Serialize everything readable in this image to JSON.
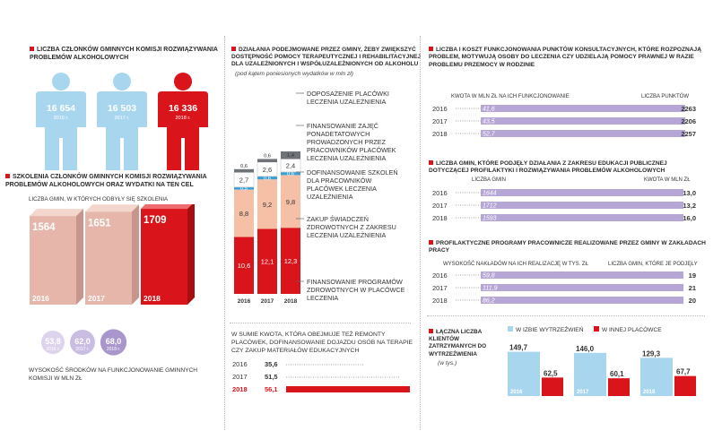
{
  "colors": {
    "red": "#d9141b",
    "lightblue": "#a9d6ef",
    "lilac": "#b6a6d6",
    "peach": "#f6c0a6",
    "gray": "#6f7378",
    "pink": "#f0a9b9"
  },
  "members": {
    "title": "Liczba członków gminnych komisji rozwiązywania problemów alkoholowych",
    "figures": [
      {
        "value": "16 654",
        "year": "2016 r."
      },
      {
        "value": "16 503",
        "year": "2017 r."
      },
      {
        "value": "16 336",
        "year": "2018 r."
      }
    ]
  },
  "training": {
    "title": "Szkolenia członków gminnych komisji rozwiązywania problemów alkoholowych oraz wydatki na ten cel",
    "subtitle": "Liczba gmin, w których odbyły się szkolenia",
    "boxes": [
      {
        "value": "1564",
        "year": "2016"
      },
      {
        "value": "1651",
        "year": "2017"
      },
      {
        "value": "1709",
        "year": "2018"
      }
    ],
    "funds": [
      "53,8",
      "62,0",
      "68,0"
    ],
    "fund_years": [
      "2016 r.",
      "2017 r.",
      "2018 r."
    ],
    "funds_label": "Wysokość środków na funkcjonowanie gminnych komisji w mln zł"
  },
  "actions": {
    "title": "Działania podejmowane przez gminy, żeby zwiększyć dostępność pomocy terapeutycznej i rehabilitacyjnej dla uzależnionych i współuzależnionych od alkoholu",
    "subtitle": "(pod kątem poniesionych wydatków w mln zł)",
    "legend": [
      "Doposażenie placówki leczenia uzależnienia",
      "Finansowanie zajęć ponadetatowych prowadzonych przez pracowników placówek leczenia uzależnienia",
      "Dofinansowanie szkoleń dla pracowników placówek leczenia uzależnienia",
      "Zakup świadczeń zdrowotnych z zakresu leczenia uzależnienia",
      "Finansowanie programów zdrowotnych w placówce leczenia"
    ]
  },
  "sum": {
    "title": "W sumie kwota, która obejmuje też remonty placówek, dofinansowanie dojazdu osób na terapie czy zakup materiałów edukacyjnych",
    "rows": [
      {
        "year": "2016",
        "value": "35,6"
      },
      {
        "year": "2017",
        "value": "51,5"
      },
      {
        "year": "2018",
        "value": "56,1"
      }
    ]
  },
  "consult": {
    "title": "Liczba i koszt funkcjonowania punktów konsultacyjnych, które rozpoznają problem, motywują osoby do leczenia czy udzielają pomocy prawnej w razie problemu przemocy w rodzinie",
    "col_left": "Kwota w mln zł na ich funkcjonowanie",
    "col_right": "Liczba punktów",
    "rows": [
      {
        "year": "2016",
        "left": "41,6",
        "right": "2263"
      },
      {
        "year": "2017",
        "left": "43,5",
        "right": "2206"
      },
      {
        "year": "2018",
        "left": "52,7",
        "right": "2257"
      }
    ]
  },
  "education": {
    "title": "Liczba gmin, które podjęły działania z zakresu edukacji publicznej dotyczącej profilaktyki i rozwiązywania problemów alkoholowych",
    "col_left": "Liczba gmin",
    "col_right": "Kwota w mln zł",
    "rows": [
      {
        "year": "2016",
        "left": "1644",
        "right": "13,0"
      },
      {
        "year": "2017",
        "left": "1712",
        "right": "13,2"
      },
      {
        "year": "2018",
        "left": "1593",
        "right": "16,0"
      }
    ]
  },
  "workplace": {
    "title": "Profilaktyczne programy pracownicze realizowane przez gminy w zakładach pracy",
    "col_left": "Wysokość nakładów na ich realizację w tys. zł",
    "col_right": "Liczba gmin, które je podjęły",
    "rows": [
      {
        "year": "2016",
        "left": "59,8",
        "right": "19"
      },
      {
        "year": "2017",
        "left": "111,9",
        "right": "21"
      },
      {
        "year": "2018",
        "left": "86,2",
        "right": "20"
      }
    ]
  },
  "detained": {
    "title": "Łączna liczba klientów zatrzymanych do wytrzeźwienia",
    "unit": "(w tys.)",
    "legend_a": "w izbie wytrzeźwień",
    "legend_b": "w innej placówce",
    "years": [
      "2016",
      "2017",
      "2018"
    ],
    "a_labels": [
      "149,7",
      "146,0",
      "129,3"
    ],
    "b_labels": [
      "62,5",
      "60,1",
      "67,7"
    ]
  },
  "chart_data": [
    {
      "type": "bar",
      "categories": [
        "2016",
        "2017",
        "2018"
      ],
      "stacked": true,
      "series": [
        {
          "name": "Finansowanie programów zdrowotnych w placówce leczenia",
          "values": [
            10.6,
            12.1,
            12.3
          ],
          "color": "#d9141b"
        },
        {
          "name": "Zakup świadczeń zdrowotnych z zakresu leczenia uzależnienia",
          "values": [
            8.8,
            9.2,
            9.8
          ],
          "color": "#f6c0a6"
        },
        {
          "name": "Dofinansowanie szkoleń dla pracowników placówek leczenia uzależnienia",
          "values": [
            0.5,
            0.6,
            0.6
          ],
          "color": "#3aa1d8"
        },
        {
          "name": "Finansowanie zajęć ponadetatowych prowadzonych przez pracowników placówek leczenia uzależnienia",
          "values": [
            2.7,
            2.6,
            2.4
          ],
          "color": "#ffffff"
        },
        {
          "name": "Doposażenie placówki leczenia uzależnienia",
          "values": [
            0.6,
            0.6,
            1.4
          ],
          "color": "#6f7378"
        }
      ],
      "labels": [
        [
          "10,6",
          "8,8",
          "0,5",
          "2,7",
          "0,6"
        ],
        [
          "12,1",
          "9,2",
          "0,6",
          "2,6",
          "0,6"
        ],
        [
          "12,3",
          "9,8",
          "0,6",
          "2,4",
          "1,4"
        ]
      ]
    },
    {
      "type": "bar",
      "categories": [
        "2016",
        "2017",
        "2018"
      ],
      "series": [
        {
          "name": "w izbie wytrzeźwień",
          "values": [
            149.7,
            146.0,
            129.3
          ]
        },
        {
          "name": "w innej placówce",
          "values": [
            62.5,
            60.1,
            67.7
          ]
        }
      ]
    }
  ]
}
